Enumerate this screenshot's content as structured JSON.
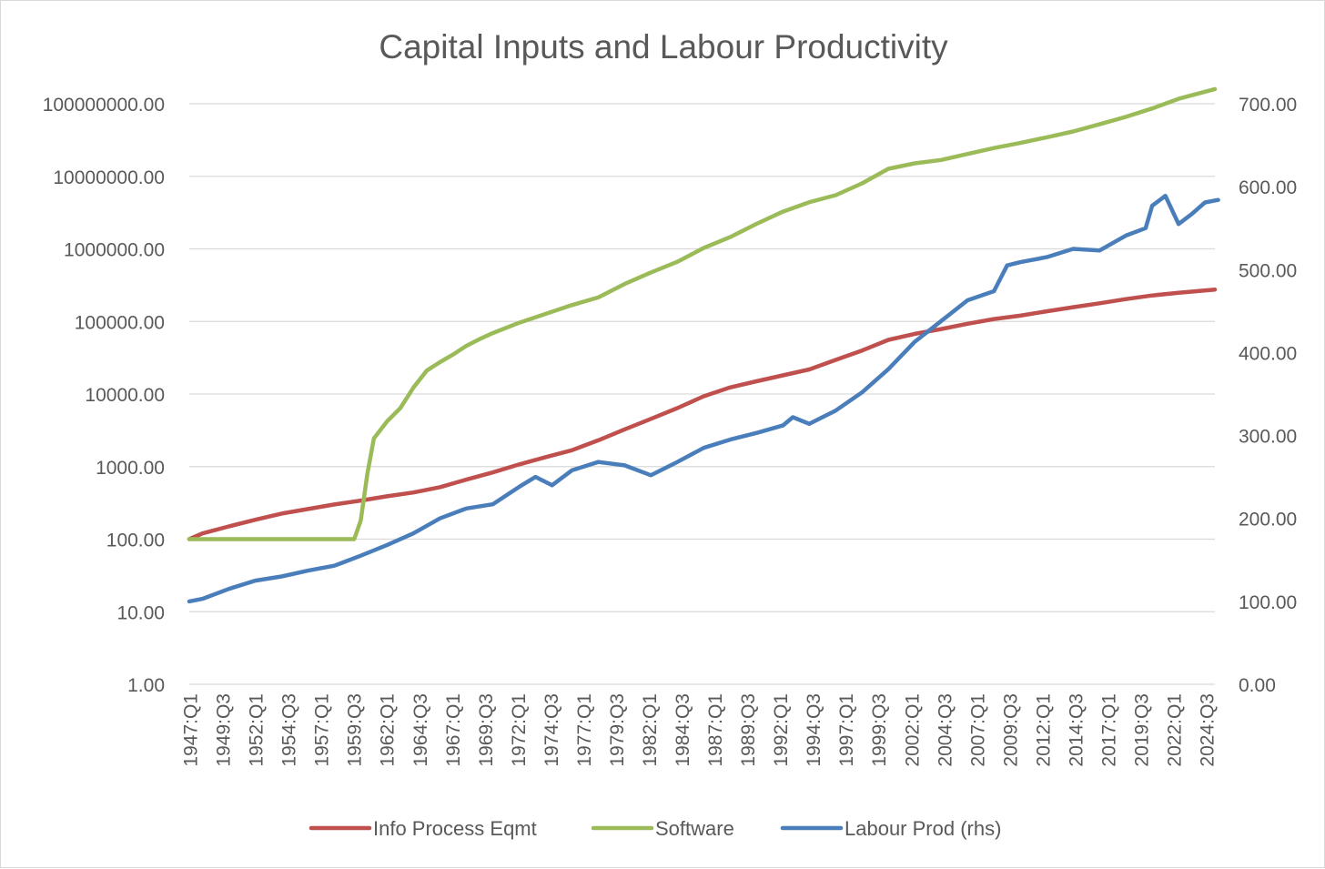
{
  "chart_data": {
    "type": "line",
    "title": "Capital Inputs and Labour Productivity",
    "xlabel": "",
    "ylabel": "",
    "y_left": {
      "scale": "log",
      "range": [
        1,
        100000000
      ],
      "ticks": [
        "1.00",
        "10.00",
        "100.00",
        "1000.00",
        "10000.00",
        "100000.00",
        "1000000.00",
        "10000000.00",
        "100000000.00"
      ]
    },
    "y_right": {
      "scale": "linear",
      "range": [
        0,
        700
      ],
      "ticks": [
        "0.00",
        "100.00",
        "200.00",
        "300.00",
        "400.00",
        "500.00",
        "600.00",
        "700.00"
      ]
    },
    "x_tick_labels": [
      "1947:Q1",
      "1949:Q3",
      "1952:Q1",
      "1954:Q3",
      "1957:Q1",
      "1959:Q3",
      "1962:Q1",
      "1964:Q3",
      "1967:Q1",
      "1969:Q3",
      "1972:Q1",
      "1974:Q3",
      "1977:Q1",
      "1979:Q3",
      "1982:Q1",
      "1984:Q3",
      "1987:Q1",
      "1989:Q3",
      "1992:Q1",
      "1994:Q3",
      "1997:Q1",
      "1999:Q3",
      "2002:Q1",
      "2004:Q3",
      "2007:Q1",
      "2009:Q3",
      "2012:Q1",
      "2014:Q3",
      "2017:Q1",
      "2019:Q3",
      "2022:Q1",
      "2024:Q3"
    ],
    "grid": true,
    "legend_position": "bottom",
    "series": [
      {
        "name": "Info Process Eqmt",
        "axis": "left",
        "color": "#c0504d",
        "x": [
          1947.0,
          1948.0,
          1950.0,
          1952.0,
          1954.0,
          1956.0,
          1958.0,
          1960.0,
          1962.0,
          1964.0,
          1966.0,
          1968.0,
          1970.0,
          1972.0,
          1974.0,
          1976.0,
          1978.0,
          1980.0,
          1982.0,
          1984.0,
          1986.0,
          1988.0,
          1990.0,
          1992.0,
          1994.0,
          1996.0,
          1998.0,
          2000.0,
          2002.0,
          2004.0,
          2006.0,
          2008.0,
          2010.0,
          2012.0,
          2014.0,
          2016.0,
          2018.0,
          2020.0,
          2022.0,
          2024.75
        ],
        "y": [
          100,
          120,
          150,
          185,
          225,
          260,
          300,
          340,
          390,
          440,
          520,
          660,
          830,
          1070,
          1350,
          1680,
          2300,
          3250,
          4550,
          6400,
          9300,
          12300,
          15000,
          18100,
          21800,
          29500,
          39700,
          55800,
          67500,
          78500,
          93000,
          108000,
          120000,
          138000,
          157000,
          178000,
          203000,
          228000,
          248000,
          275000
        ]
      },
      {
        "name": "Software",
        "axis": "left",
        "color": "#9bbb59",
        "x": [
          1947.0,
          1959.5,
          1960.0,
          1960.5,
          1961.0,
          1962.0,
          1963.0,
          1964.0,
          1965.0,
          1966.0,
          1967.0,
          1968.0,
          1969.0,
          1970.0,
          1972.0,
          1974.0,
          1976.0,
          1978.0,
          1980.0,
          1982.0,
          1984.0,
          1986.0,
          1988.0,
          1990.0,
          1992.0,
          1994.0,
          1996.0,
          1998.0,
          2000.0,
          2002.0,
          2004.0,
          2006.0,
          2008.0,
          2010.0,
          2012.0,
          2014.0,
          2016.0,
          2018.0,
          2020.0,
          2022.0,
          2024.75
        ],
        "y": [
          100,
          100,
          180,
          800,
          2450,
          4200,
          6400,
          12300,
          21000,
          27500,
          35000,
          46000,
          57000,
          69000,
          96000,
          127000,
          168000,
          214000,
          328000,
          473000,
          664000,
          1030000,
          1450000,
          2210000,
          3260000,
          4400000,
          5500000,
          8000000,
          12700000,
          15100000,
          16800000,
          20300000,
          24500000,
          28800000,
          34500000,
          41500000,
          52000000,
          66000000,
          86000000,
          117000000,
          159000000
        ]
      },
      {
        "name": "Labour Prod (rhs)",
        "axis": "right",
        "color": "#4a7ebb",
        "x": [
          1947.0,
          1948.0,
          1950.0,
          1952.0,
          1954.0,
          1956.0,
          1958.0,
          1960.0,
          1962.0,
          1964.0,
          1966.0,
          1968.0,
          1970.0,
          1972.0,
          1973.25,
          1974.5,
          1976.0,
          1978.0,
          1980.0,
          1982.0,
          1984.0,
          1986.0,
          1988.0,
          1990.0,
          1992.0,
          1992.75,
          1994.0,
          1996.0,
          1998.0,
          2000.0,
          2002.0,
          2004.0,
          2006.0,
          2008.0,
          2009.0,
          2010.0,
          2012.0,
          2014.0,
          2016.0,
          2018.0,
          2019.5,
          2020.0,
          2021.0,
          2022.0,
          2023.0,
          2024.0,
          2025.0
        ],
        "y": [
          100,
          103,
          115,
          125,
          130,
          137,
          143,
          155,
          168,
          182,
          200,
          212,
          217,
          238,
          250,
          240,
          258,
          268,
          264,
          252,
          268,
          285,
          295,
          303,
          312,
          322,
          314,
          330,
          352,
          380,
          413,
          438,
          463,
          474,
          505,
          509,
          515,
          525,
          523,
          541,
          550,
          577,
          589,
          555,
          567,
          581,
          584
        ]
      }
    ]
  }
}
